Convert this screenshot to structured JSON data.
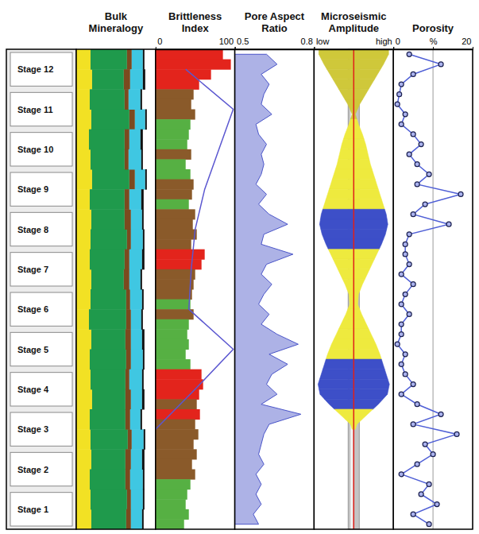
{
  "stages": [
    "Stage 12",
    "Stage 11",
    "Stage 10",
    "Stage 9",
    "Stage 8",
    "Stage 7",
    "Stage 6",
    "Stage 5",
    "Stage 4",
    "Stage 3",
    "Stage 2",
    "Stage 1"
  ],
  "chart_data": [
    {
      "type": "bar",
      "title": "Bulk Mineralogy",
      "orientation": "horizontal",
      "stacked": true,
      "xlim": [
        0,
        100
      ],
      "tick_labels": false,
      "series": [
        {
          "color": "#f2e124",
          "values": [
            18,
            20,
            17,
            19,
            16,
            18,
            20,
            17,
            19,
            18,
            17,
            19,
            18,
            16,
            19,
            17,
            18,
            20,
            17,
            18,
            19,
            17,
            18,
            19
          ]
        },
        {
          "color": "#1f9a4c",
          "values": [
            46,
            40,
            44,
            48,
            45,
            43,
            47,
            44,
            42,
            46,
            44,
            41,
            45,
            47,
            43,
            46,
            44,
            42,
            45,
            47,
            43,
            45,
            46,
            44
          ]
        },
        {
          "color": "#7b4a1f",
          "values": [
            6,
            8,
            5,
            7,
            6,
            5,
            7,
            6,
            8,
            5,
            6,
            7,
            5,
            6,
            7,
            6,
            5,
            7,
            6,
            5,
            7,
            6,
            5,
            6
          ]
        },
        {
          "color": "#3fc7e2",
          "values": [
            14,
            16,
            15,
            13,
            14,
            16,
            13,
            15,
            14,
            15,
            16,
            14,
            15,
            13,
            14,
            15,
            16,
            14,
            13,
            15,
            14,
            16,
            15,
            14
          ]
        },
        {
          "color": "#111111",
          "values": [
            2,
            3,
            2,
            2,
            3,
            2,
            2,
            3,
            2,
            2,
            3,
            2,
            2,
            2,
            3,
            2,
            2,
            3,
            2,
            2,
            3,
            2,
            2,
            2
          ]
        }
      ]
    },
    {
      "type": "bar",
      "title": "Brittleness Index",
      "orientation": "horizontal",
      "xlim": [
        0,
        100
      ],
      "xticks": [
        0,
        100
      ],
      "series": [
        {
          "type": "bar",
          "values": [
            85,
            95,
            70,
            55,
            48,
            45,
            50,
            44,
            42,
            40,
            45,
            38,
            44,
            48,
            46,
            42,
            50,
            47,
            52,
            45,
            62,
            58,
            50,
            48,
            46,
            44,
            48,
            42,
            40,
            42,
            38,
            44,
            58,
            60,
            55,
            52,
            56,
            50,
            54,
            48,
            52,
            46,
            50,
            44,
            40,
            38,
            42,
            36
          ],
          "colors": [
            "#e3241c",
            "#e3241c",
            "#e3241c",
            "#e3241c",
            "#8a5a2a",
            "#8a5a2a",
            "#8a5a2a",
            "#56b043",
            "#56b043",
            "#56b043",
            "#8a5a2a",
            "#56b043",
            "#56b043",
            "#8a5a2a",
            "#8a5a2a",
            "#56b043",
            "#8a5a2a",
            "#8a5a2a",
            "#8a5a2a",
            "#8a5a2a",
            "#e3241c",
            "#e3241c",
            "#8a5a2a",
            "#8a5a2a",
            "#8a5a2a",
            "#56b043",
            "#8a5a2a",
            "#56b043",
            "#56b043",
            "#56b043",
            "#56b043",
            "#56b043",
            "#e3241c",
            "#e3241c",
            "#e3241c",
            "#8a5a2a",
            "#e3241c",
            "#8a5a2a",
            "#8a5a2a",
            "#8a5a2a",
            "#8a5a2a",
            "#8a5a2a",
            "#8a5a2a",
            "#56b043",
            "#56b043",
            "#56b043",
            "#56b043",
            "#56b043"
          ]
        },
        {
          "type": "line",
          "color": "#5b57d0",
          "values": [
            38,
            98,
            80,
            62,
            50,
            45,
            42,
            98,
            50,
            0,
            null,
            null
          ]
        }
      ]
    },
    {
      "type": "area",
      "title": "Pore Aspect Ratio",
      "orientation": "horizontal",
      "xlim": [
        0.5,
        0.8
      ],
      "xticks": [
        0.5,
        0.8
      ],
      "series": [
        {
          "color": "#4a55c8",
          "values": [
            0.62,
            0.66,
            0.6,
            0.63,
            0.61,
            0.6,
            0.64,
            0.58,
            0.59,
            0.62,
            0.6,
            0.61,
            0.6,
            0.58,
            0.62,
            0.59,
            0.63,
            0.7,
            0.61,
            0.6,
            0.72,
            0.62,
            0.6,
            0.64,
            0.61,
            0.59,
            0.63,
            0.6,
            0.66,
            0.74,
            0.63,
            0.7,
            0.64,
            0.62,
            0.66,
            0.6,
            0.75,
            0.63,
            0.61,
            0.6,
            0.59,
            0.61,
            0.58,
            0.6,
            0.58,
            0.6,
            0.57,
            0.59
          ]
        }
      ]
    },
    {
      "type": "violin",
      "title": "Microseismic Amplitude",
      "orientation": "horizontal",
      "xlim": [
        0,
        1
      ],
      "xticks": [
        {
          "value": 0,
          "label": "low"
        },
        {
          "value": 1,
          "label": "high"
        }
      ],
      "series": [
        {
          "values": [
            0.88,
            0.75,
            0.6,
            0.45,
            0.3,
            0.15,
            0.04,
            0.12,
            0.22,
            0.3,
            0.36,
            0.42,
            0.5,
            0.58,
            0.66,
            0.74,
            0.82,
            0.86,
            0.8,
            0.7,
            0.58,
            0.46,
            0.34,
            0.22,
            0.12,
            0.1,
            0.2,
            0.32,
            0.44,
            0.56,
            0.66,
            0.74,
            0.82,
            0.9,
            0.85,
            0.62,
            0.35,
            0.08,
            null,
            null,
            null,
            null,
            null,
            null,
            null,
            null,
            null,
            null
          ],
          "colors": [
            "#cfc83a",
            "#cfc83a",
            "#cfc83a",
            "#cfc83a",
            "#cfc83a",
            "#cfc83a",
            "#cfc83a",
            "#eeea3e",
            "#eeea3e",
            "#eeea3e",
            "#eeea3e",
            "#eeea3e",
            "#eeea3e",
            "#eeea3e",
            "#eeea3e",
            "#eeea3e",
            "#3d4fc8",
            "#3d4fc8",
            "#3d4fc8",
            "#3d4fc8",
            "#eeea3e",
            "#eeea3e",
            "#eeea3e",
            "#eeea3e",
            "#eeea3e",
            "#eeea3e",
            "#eeea3e",
            "#eeea3e",
            "#eeea3e",
            "#eeea3e",
            "#eeea3e",
            "#3d4fc8",
            "#3d4fc8",
            "#3d4fc8",
            "#3d4fc8",
            "#3d4fc8",
            "#eeea3e",
            "#eeea3e",
            null,
            null,
            null,
            null,
            null,
            null,
            null,
            null,
            null,
            null
          ]
        }
      ]
    },
    {
      "type": "line",
      "title": "Porosity",
      "orientation": "horizontal",
      "grid": true,
      "xlim": [
        0,
        20
      ],
      "xticks": [
        0,
        {
          "value": 10,
          "label": "%"
        },
        20
      ],
      "series": [
        {
          "color": "#4f5fd6",
          "marker": "circle",
          "values": [
            4,
            12,
            5,
            2,
            1.5,
            1,
            3,
            2,
            5,
            7,
            4,
            6,
            9,
            6,
            17,
            8,
            5,
            14,
            4,
            3,
            3,
            4,
            2,
            5,
            3,
            2,
            4,
            2,
            2,
            1,
            3,
            2,
            3,
            5,
            2,
            6,
            12,
            5,
            16,
            8,
            10,
            6,
            2,
            9,
            7,
            11,
            5,
            9
          ]
        }
      ]
    }
  ]
}
